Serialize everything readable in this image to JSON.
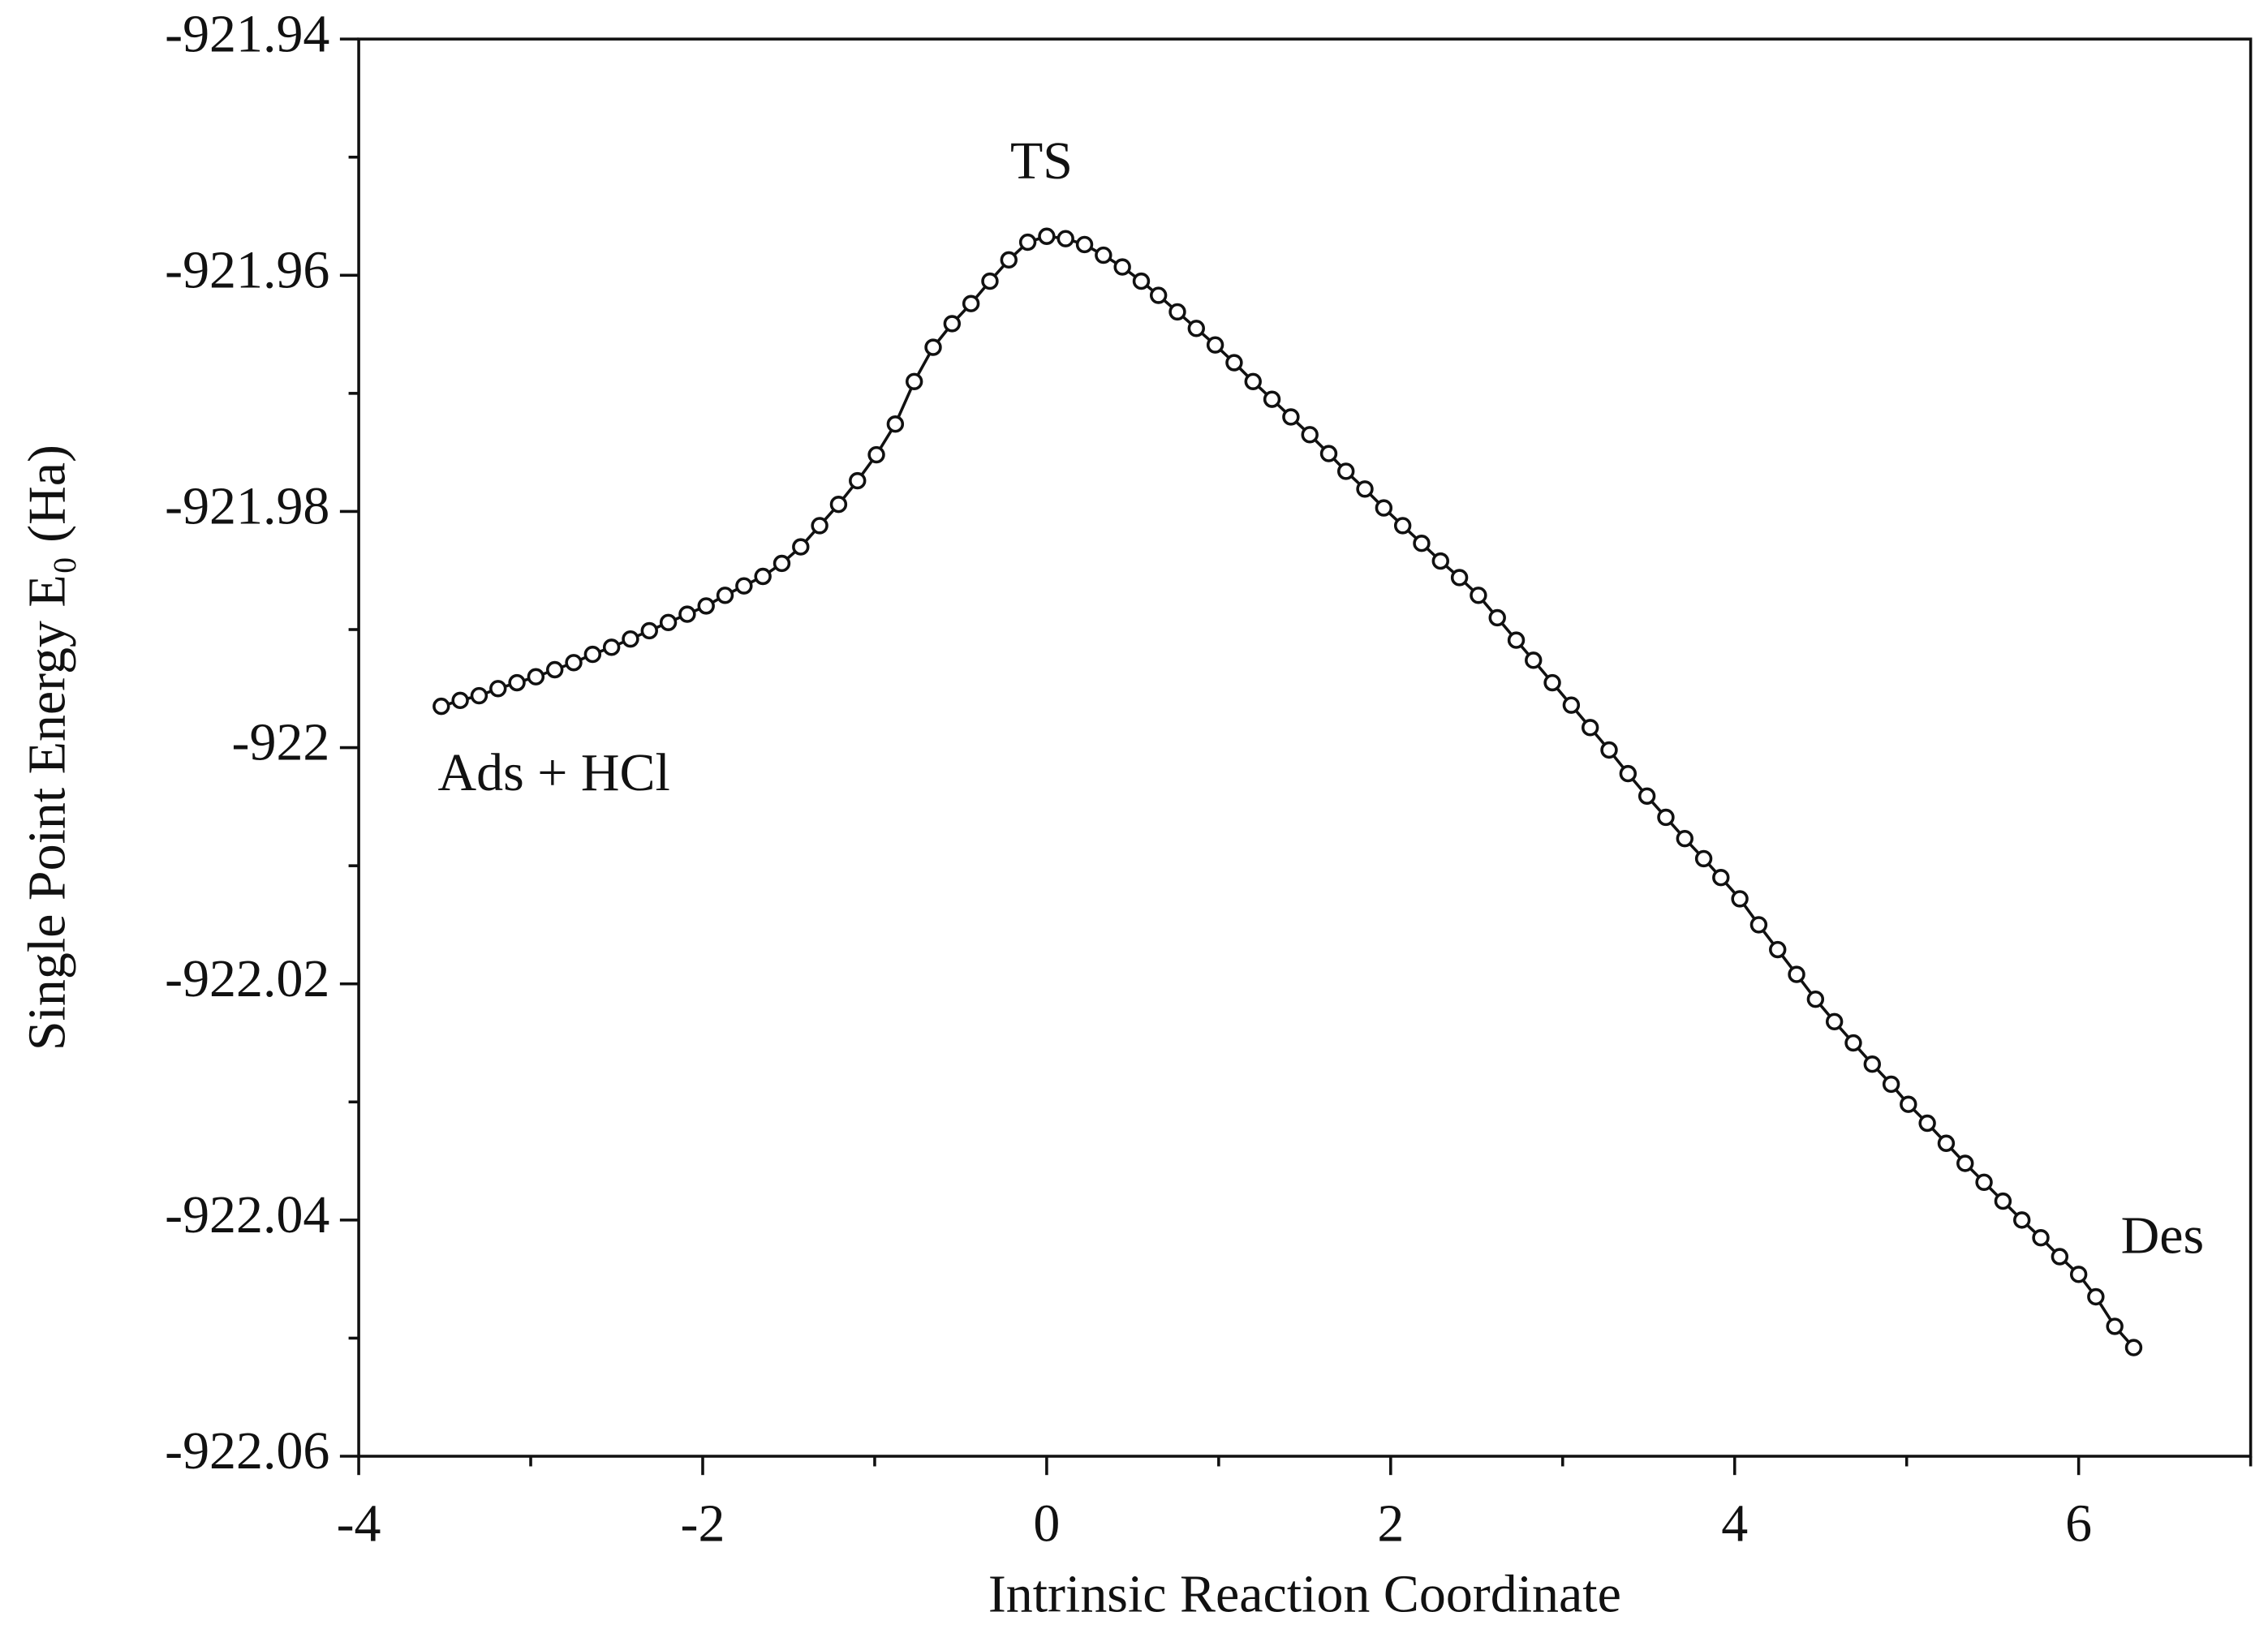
{
  "chart_data": {
    "type": "line",
    "x_label": "Intrinsic Reaction Coordinate",
    "y_label": "Single Point Energy E₀ (Ha)",
    "annotations": [
      "TS",
      "Ads + HCl",
      "Des"
    ],
    "xlim": [
      -4,
      7
    ],
    "xticks": [
      -4,
      -2,
      0,
      2,
      4,
      6
    ],
    "xticks_minor": [
      -3,
      -1,
      1,
      3,
      5,
      7
    ],
    "ylim": [
      -922.06,
      -921.94
    ],
    "yticks": [
      -921.94,
      -921.96,
      -921.98,
      -922,
      -922.02,
      -922.04,
      -922.06
    ],
    "yticks_minor": [
      -921.95,
      -921.97,
      -921.99,
      -922.01,
      -922.03,
      -922.05
    ],
    "grid": false,
    "color": "#111111",
    "x": [
      -3.52,
      -3.41,
      -3.3,
      -3.19,
      -3.08,
      -2.97,
      -2.86,
      -2.75,
      -2.64,
      -2.53,
      -2.42,
      -2.31,
      -2.2,
      -2.09,
      -1.98,
      -1.87,
      -1.76,
      -1.65,
      -1.54,
      -1.43,
      -1.32,
      -1.21,
      -1.1,
      -0.99,
      -0.88,
      -0.77,
      -0.66,
      -0.55,
      -0.44,
      -0.33,
      -0.22,
      -0.11,
      0,
      0.11,
      0.22,
      0.33,
      0.44,
      0.55,
      0.65,
      0.76,
      0.87,
      0.98,
      1.09,
      1.2,
      1.31,
      1.42,
      1.53,
      1.64,
      1.74,
      1.85,
      1.96,
      2.07,
      2.18,
      2.29,
      2.4,
      2.51,
      2.62,
      2.73,
      2.83,
      2.94,
      3.05,
      3.16,
      3.27,
      3.38,
      3.49,
      3.6,
      3.71,
      3.82,
      3.92,
      4.03,
      4.14,
      4.25,
      4.36,
      4.47,
      4.58,
      4.69,
      4.8,
      4.91,
      5.01,
      5.12,
      5.23,
      5.34,
      5.45,
      5.56,
      5.67,
      5.78,
      5.89,
      6.0,
      6.1,
      6.21,
      6.32
    ],
    "values": [
      -921.9965,
      -921.996,
      -921.9956,
      -921.995,
      -921.9945,
      -921.994,
      -921.9934,
      -921.9928,
      -921.9921,
      -921.9915,
      -921.9908,
      -921.9901,
      -921.9894,
      -921.9887,
      -921.988,
      -921.9871,
      -921.9863,
      -921.9855,
      -921.9844,
      -921.983,
      -921.9812,
      -921.9794,
      -921.9774,
      -921.9752,
      -921.9726,
      -921.969,
      -921.9661,
      -921.9641,
      -921.9624,
      -921.9605,
      -921.9587,
      -921.9572,
      -921.9567,
      -921.9569,
      -921.9574,
      -921.9583,
      -921.9593,
      -921.9605,
      -921.9617,
      -921.9631,
      -921.9645,
      -921.9659,
      -921.9674,
      -921.969,
      -921.9705,
      -921.972,
      -921.9735,
      -921.9751,
      -921.9766,
      -921.9781,
      -921.9797,
      -921.9812,
      -921.9827,
      -921.9842,
      -921.9856,
      -921.9871,
      -921.989,
      -921.9909,
      -921.9926,
      -921.9945,
      -921.9964,
      -921.9983,
      -922.0002,
      -922.0022,
      -922.0041,
      -922.0059,
      -922.0077,
      -922.0094,
      -922.011,
      -922.0128,
      -922.015,
      -922.0171,
      -922.0192,
      -922.0213,
      -922.0232,
      -922.025,
      -922.0268,
      -922.0285,
      -922.0302,
      -922.0318,
      -922.0335,
      -922.0352,
      -922.0368,
      -922.0384,
      -922.04,
      -922.0415,
      -922.0431,
      -922.0446,
      -922.0465,
      -922.049,
      -922.0508
    ]
  }
}
